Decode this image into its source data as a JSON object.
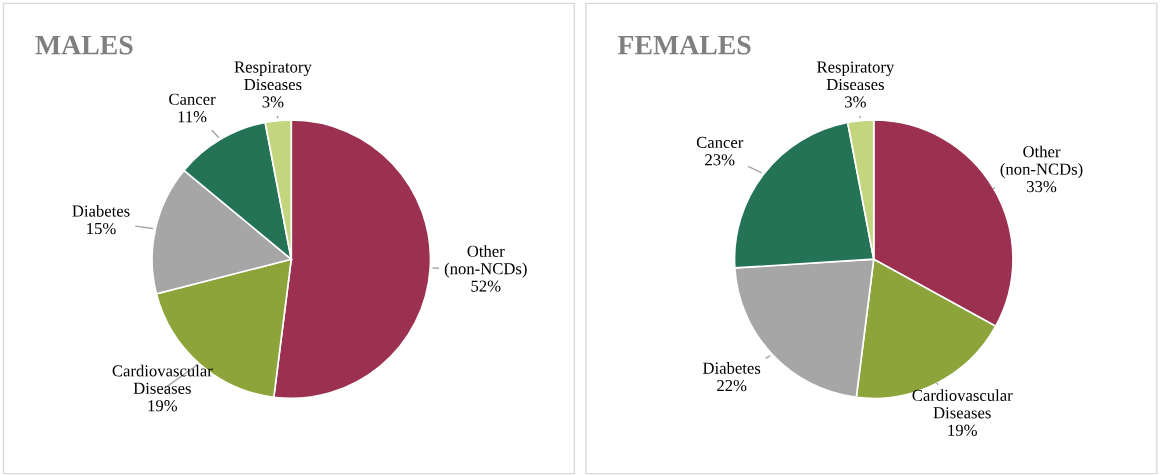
{
  "chart_data": [
    {
      "type": "pie",
      "title": "MALES",
      "categories": [
        "Other (non-NCDs)",
        "Cardiovascular Diseases",
        "Diabetes",
        "Cancer",
        "Respiratory Diseases"
      ],
      "values": [
        52,
        19,
        15,
        11,
        3
      ],
      "value_labels": [
        "52%",
        "19%",
        "15%",
        "11%",
        "3%"
      ],
      "colors": [
        "#9b3050",
        "#8ca43a",
        "#a6a6a6",
        "#247356",
        "#c3d67e"
      ]
    },
    {
      "type": "pie",
      "title": "FEMALES",
      "categories": [
        "Other (non-NCDs)",
        "Cardiovascular Diseases",
        "Diabetes",
        "Cancer",
        "Respiratory Diseases"
      ],
      "values": [
        33,
        19,
        22,
        23,
        3
      ],
      "value_labels": [
        "33%",
        "19%",
        "22%",
        "23%",
        "3%"
      ],
      "colors": [
        "#9b3050",
        "#8ca43a",
        "#a6a6a6",
        "#247356",
        "#c3d67e"
      ]
    }
  ]
}
